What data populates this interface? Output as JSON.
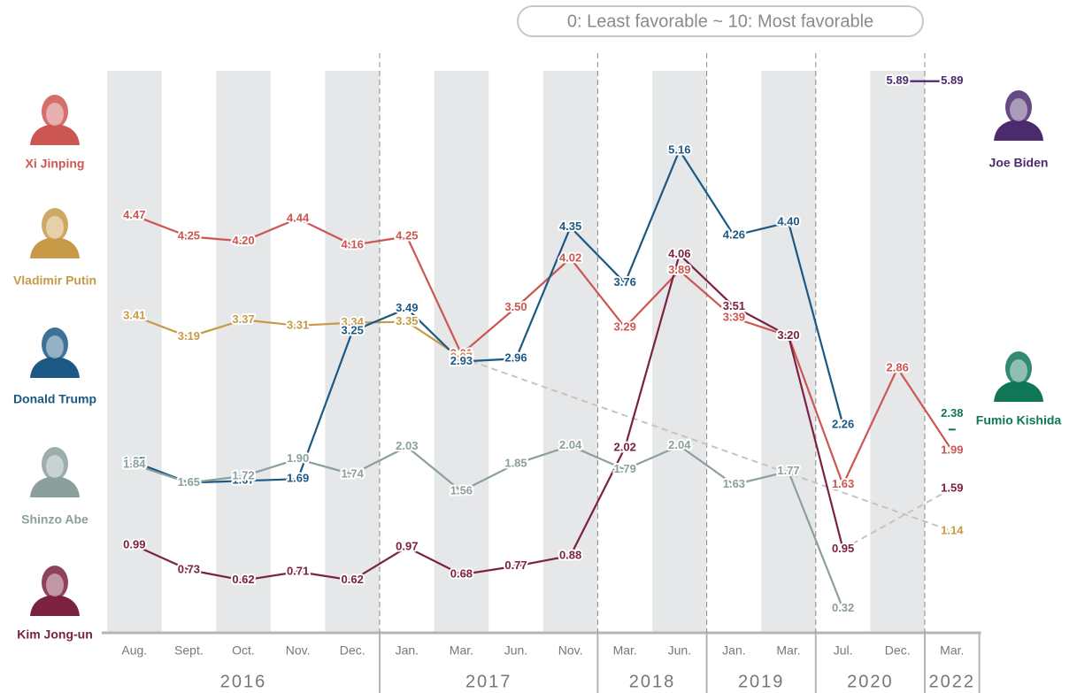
{
  "chart_data": {
    "type": "line",
    "subtitle": "0: Least favorable ~ 10: Most favorable",
    "groups": [
      {
        "label": "2016",
        "categories": [
          "Aug.",
          "Sept.",
          "Oct.",
          "Nov.",
          "Dec."
        ]
      },
      {
        "label": "2017",
        "categories": [
          "Jan.",
          "Mar.",
          "Jun.",
          "Nov."
        ]
      },
      {
        "label": "2018",
        "categories": [
          "Mar.",
          "Jun."
        ]
      },
      {
        "label": "2019",
        "categories": [
          "Jan.",
          "Mar."
        ]
      },
      {
        "label": "2020",
        "categories": [
          "Jul.",
          "Dec."
        ]
      },
      {
        "label": "2022",
        "categories": [
          "Mar."
        ]
      }
    ],
    "ylim": [
      0,
      6
    ],
    "series": [
      {
        "name": "Xi Jinping",
        "color": "#cc5652",
        "values": [
          4.47,
          4.25,
          4.2,
          4.44,
          4.16,
          4.25,
          3.01,
          3.5,
          4.02,
          3.29,
          3.89,
          3.39,
          3.2,
          1.63,
          2.86,
          1.99
        ],
        "value_labels": [
          "4.47",
          "4.25",
          "4.20",
          "4.44",
          "4.16",
          "4.25",
          "3.01",
          "3.50",
          "4.02",
          "3.29",
          "3.89",
          "3.39",
          "3.20",
          "1.63",
          "2.86",
          "1.99"
        ]
      },
      {
        "name": "Vladimir Putin",
        "color": "#c79a48",
        "values": [
          3.41,
          3.19,
          3.37,
          3.31,
          3.34,
          3.35,
          2.97,
          null,
          null,
          null,
          null,
          null,
          null,
          null,
          null,
          1.14
        ],
        "value_labels": [
          "3.41",
          "3.19",
          "3.37",
          "3.31",
          "3.34",
          "3.35",
          "2.97",
          null,
          null,
          null,
          null,
          null,
          null,
          null,
          null,
          "1.14"
        ]
      },
      {
        "name": "Donald Trump",
        "color": "#1b5883",
        "values": [
          1.87,
          1.65,
          1.67,
          1.69,
          3.25,
          3.49,
          2.93,
          2.96,
          4.35,
          3.76,
          5.16,
          4.26,
          4.4,
          2.26,
          null,
          null
        ],
        "value_labels": [
          "1.87",
          "1.65",
          "1.67",
          "1.69",
          "3.25",
          "3.49",
          "2.93",
          "2.96",
          "4.35",
          "3.76",
          "5.16",
          "4.26",
          "4.40",
          "2.26",
          null,
          null
        ]
      },
      {
        "name": "Shinzo Abe",
        "color": "#8b9f9d",
        "values": [
          1.84,
          1.65,
          1.72,
          1.9,
          1.74,
          2.03,
          1.56,
          1.85,
          2.04,
          1.79,
          2.04,
          1.63,
          1.77,
          0.32,
          null,
          null
        ],
        "value_labels": [
          "1.84",
          "1.65",
          "1.72",
          "1.90",
          "1.74",
          "2.03",
          "1.56",
          "1.85",
          "2.04",
          "1.79",
          "2.04",
          "1.63",
          "1.77",
          "0.32",
          null,
          null
        ]
      },
      {
        "name": "Kim Jong-un",
        "color": "#7b2142",
        "values": [
          0.99,
          0.73,
          0.62,
          0.71,
          0.62,
          0.97,
          0.68,
          0.77,
          0.88,
          2.02,
          4.06,
          3.51,
          3.2,
          0.95,
          null,
          1.59
        ],
        "value_labels": [
          "0.99",
          "0.73",
          "0.62",
          "0.71",
          "0.62",
          "0.97",
          "0.68",
          "0.77",
          "0.88",
          "2.02",
          "4.06",
          "3.51",
          "3.20",
          "0.95",
          null,
          "1.59"
        ]
      },
      {
        "name": "Joe Biden",
        "color": "#4b2a6d",
        "values": [
          null,
          null,
          null,
          null,
          null,
          null,
          null,
          null,
          null,
          null,
          null,
          null,
          null,
          null,
          5.89,
          5.89
        ],
        "value_labels": [
          null,
          null,
          null,
          null,
          null,
          null,
          null,
          null,
          null,
          null,
          null,
          null,
          null,
          null,
          "5.89",
          "5.89"
        ]
      },
      {
        "name": "Fumio Kishida",
        "color": "#0f7658",
        "values": [
          null,
          null,
          null,
          null,
          null,
          null,
          null,
          null,
          null,
          null,
          null,
          null,
          null,
          null,
          null,
          2.38
        ],
        "value_labels": [
          null,
          null,
          null,
          null,
          null,
          null,
          null,
          null,
          null,
          null,
          null,
          null,
          null,
          null,
          null,
          "2.38"
        ]
      }
    ]
  }
}
